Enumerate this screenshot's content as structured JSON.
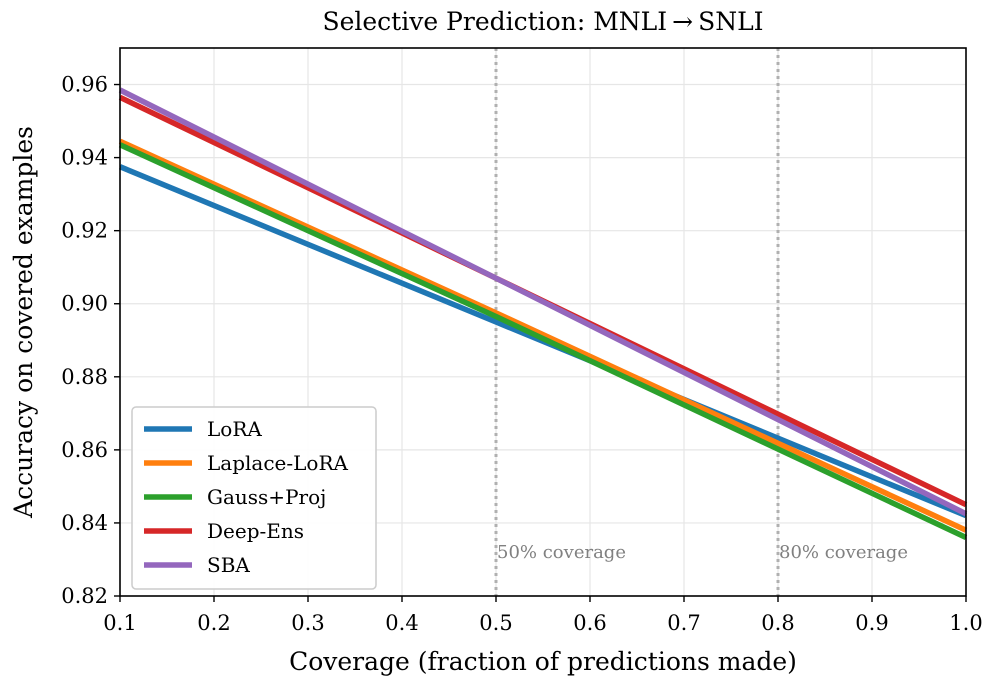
{
  "chart_data": {
    "type": "line",
    "title": "Selective Prediction: MNLI → SNLI",
    "xlabel": "Coverage (fraction of predictions made)",
    "ylabel": "Accuracy on covered examples",
    "xlim": [
      0.1,
      1.0
    ],
    "ylim": [
      0.82,
      0.97
    ],
    "xticks": [
      0.1,
      0.2,
      0.3,
      0.4,
      0.5,
      0.6,
      0.7,
      0.8,
      0.9,
      1.0
    ],
    "xtick_labels": [
      "0.1",
      "0.2",
      "0.3",
      "0.4",
      "0.5",
      "0.6",
      "0.7",
      "0.8",
      "0.9",
      "1.0"
    ],
    "yticks": [
      0.82,
      0.84,
      0.86,
      0.88,
      0.9,
      0.92,
      0.94,
      0.96
    ],
    "ytick_labels": [
      "0.82",
      "0.84",
      "0.86",
      "0.88",
      "0.90",
      "0.92",
      "0.94",
      "0.96"
    ],
    "grid": true,
    "legend_position": "lower-left",
    "x": [
      0.1,
      0.5,
      1.0
    ],
    "series": [
      {
        "name": "LoRA",
        "color": "#1f77b4",
        "values": [
          0.9375,
          0.895,
          0.842
        ]
      },
      {
        "name": "Laplace-LoRA",
        "color": "#ff7f0e",
        "values": [
          0.9445,
          0.8975,
          0.838
        ]
      },
      {
        "name": "Gauss+Proj",
        "color": "#2ca02c",
        "values": [
          0.9435,
          0.8965,
          0.836
        ]
      },
      {
        "name": "Deep-Ens",
        "color": "#d62728",
        "values": [
          0.9565,
          0.907,
          0.845
        ]
      },
      {
        "name": "SBA",
        "color": "#9467bd",
        "values": [
          0.9585,
          0.907,
          0.8425
        ]
      }
    ],
    "annotations": [
      {
        "x": 0.5,
        "label": "50% coverage",
        "color": "#b0b0b0"
      },
      {
        "x": 0.8,
        "label": "80% coverage",
        "color": "#b0b0b0"
      }
    ]
  }
}
